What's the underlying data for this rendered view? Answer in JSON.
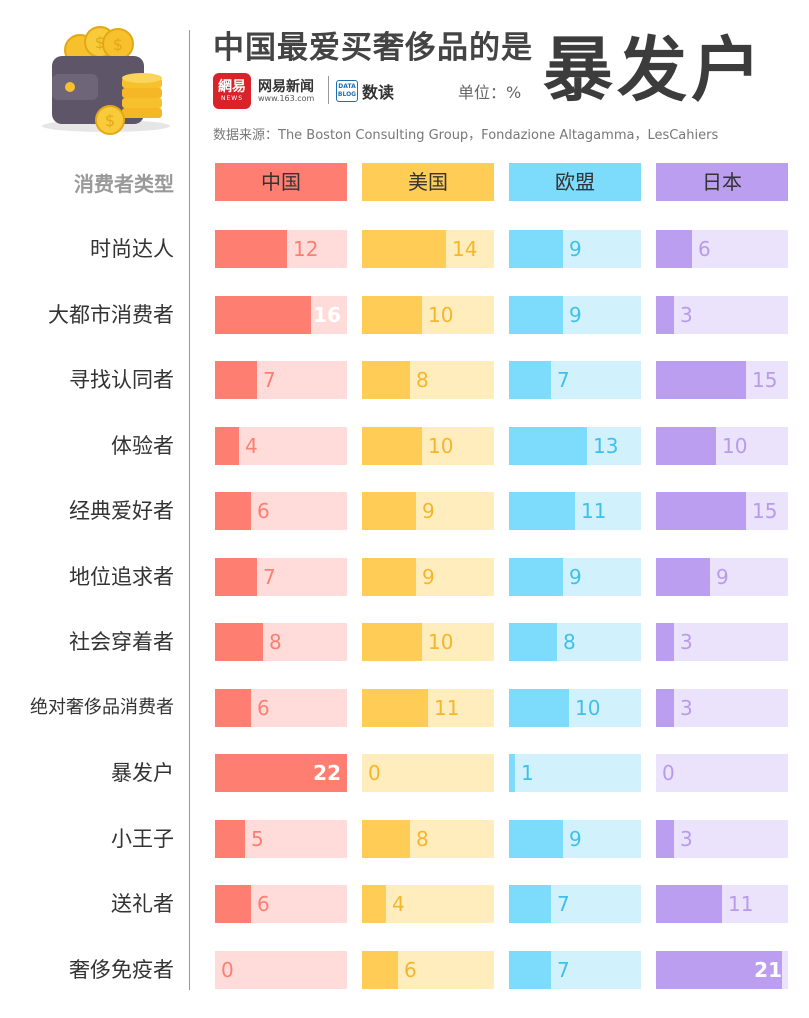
{
  "header": {
    "title": "中国最爱买奢侈品的是",
    "title_highlight": "暴发户",
    "logo_text": "網易",
    "logo_sub": "NEWS",
    "brand_name": "网易新闻",
    "brand_url": "www.163.com",
    "data_blog_logo": "DATA BLOG",
    "data_read": "数读",
    "unit": "单位：%",
    "source": "数据来源：The Boston Consulting Group，Fondazione Altagamma，LesCahiers"
  },
  "icons": {
    "wallet": "wallet-coins-icon"
  },
  "colors": {
    "china": [
      "#ff7e72",
      "#ffdcda",
      "#ff7e72"
    ],
    "usa": [
      "#ffcd55",
      "#ffedbd",
      "#f5b62a"
    ],
    "eu": [
      "#7ddcfb",
      "#d1f2fd",
      "#3fc0ec"
    ],
    "japan": [
      "#bb9ef0",
      "#ebe2fb",
      "#b89cea"
    ]
  },
  "chart_data": {
    "type": "bar",
    "title": "中国最爱买奢侈品的是暴发户",
    "unit": "%",
    "category_header": "消费者类型",
    "categories": [
      "时尚达人",
      "大都市消费者",
      "寻找认同者",
      "体验者",
      "经典爱好者",
      "地位追求者",
      "社会穿着者",
      "绝对奢侈品消费者",
      "暴发户",
      "小王子",
      "送礼者",
      "奢侈免疫者"
    ],
    "series": [
      {
        "key": "china",
        "name": "中国",
        "values": [
          12,
          16,
          7,
          4,
          6,
          7,
          8,
          6,
          22,
          5,
          6,
          0
        ]
      },
      {
        "key": "usa",
        "name": "美国",
        "values": [
          14,
          10,
          8,
          10,
          9,
          9,
          10,
          11,
          0,
          8,
          4,
          6
        ]
      },
      {
        "key": "eu",
        "name": "欧盟",
        "values": [
          9,
          9,
          7,
          13,
          11,
          9,
          8,
          10,
          1,
          9,
          7,
          7
        ]
      },
      {
        "key": "japan",
        "name": "日本",
        "values": [
          6,
          3,
          15,
          10,
          15,
          9,
          3,
          3,
          0,
          3,
          11,
          21
        ]
      }
    ],
    "xlim": [
      0,
      22
    ]
  }
}
